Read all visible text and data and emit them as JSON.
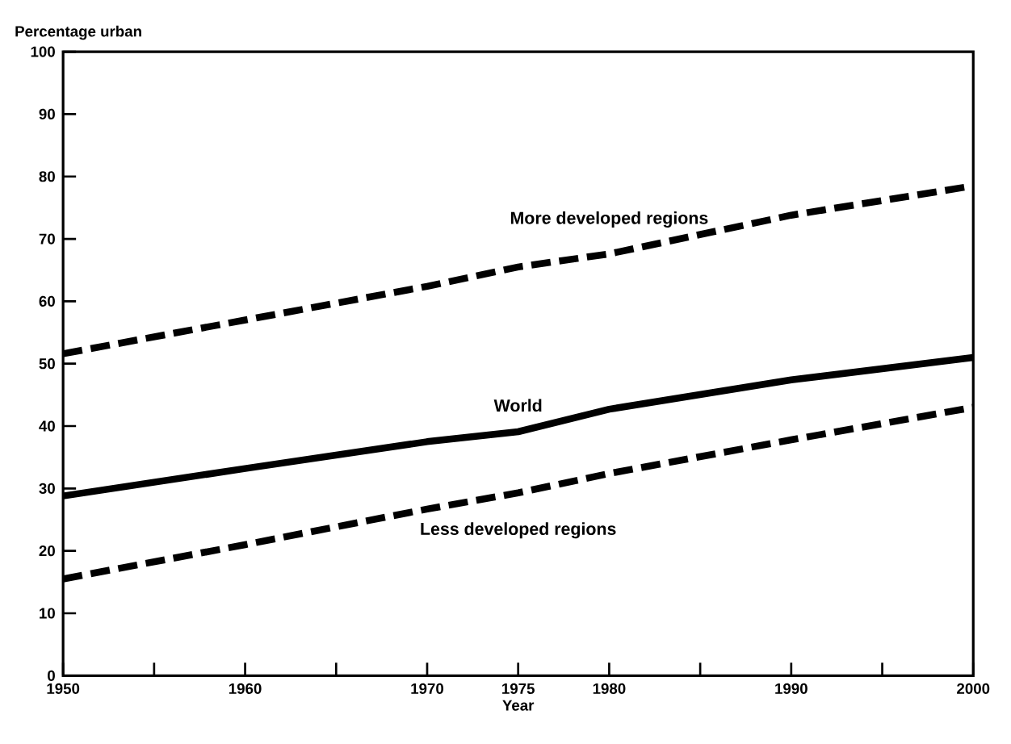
{
  "chart_data": {
    "type": "line",
    "xlabel": "Year",
    "ylabel": "Percentage urban",
    "x": [
      1950,
      1960,
      1970,
      1975,
      1980,
      1990,
      2000
    ],
    "series": [
      {
        "name": "More developed regions",
        "color": "#000000",
        "line_style": "dashed",
        "values": [
          51.6,
          57,
          62.4,
          65.5,
          67.6,
          73.8,
          78.5
        ]
      },
      {
        "name": "World",
        "color": "#000000",
        "line_style": "solid",
        "values": [
          28.8,
          33.2,
          37.5,
          39.1,
          42.7,
          47.4,
          51
        ]
      },
      {
        "name": "Less developed regions",
        "color": "#000000",
        "line_style": "dashed",
        "values": [
          15.5,
          21,
          26.7,
          29.3,
          32.4,
          37.8,
          43
        ]
      }
    ],
    "xlim": [
      1950,
      2000
    ],
    "xticks": [
      1950,
      {
        "value": 1955,
        "label": null
      },
      1960,
      {
        "value": 1965,
        "label": null
      },
      1970,
      1975,
      1980,
      {
        "value": 1985,
        "label": null
      },
      1990,
      {
        "value": 1995,
        "label": null
      },
      2000
    ],
    "ylim": [
      0,
      100
    ],
    "yticks": [
      0,
      10,
      20,
      30,
      40,
      50,
      60,
      70,
      80,
      90,
      100
    ],
    "marker": "none"
  }
}
